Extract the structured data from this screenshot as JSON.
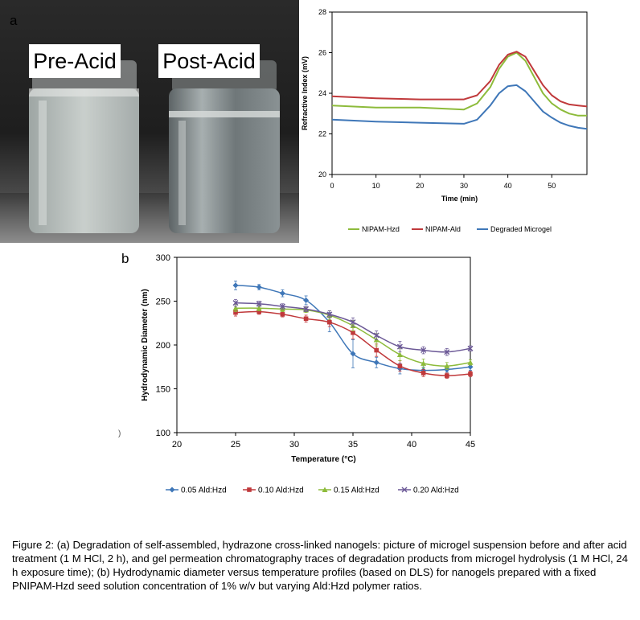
{
  "panel_a": {
    "letter": "a",
    "photo": {
      "label_left": "Pre-Acid",
      "label_right": "Post-Acid"
    }
  },
  "panel_b": {
    "letter": "b",
    "stray_mark": ")"
  },
  "caption": "Figure 2: (a) Degradation of self-assembled, hydrazone cross-linked nanogels: picture of microgel suspension before and after acid treatment (1 M HCl, 2 h), and gel permeation chromatography traces of degradation products from microgel hydrolysis (1 M HCl, 24 h exposure time); (b) Hydrodynamic diameter versus temperature profiles (based on DLS) for nanogels prepared with a fixed PNIPAM-Hzd seed solution concentration of 1% w/v but varying Ald:Hzd polymer ratios.",
  "chart_data": [
    {
      "type": "line",
      "xlabel": "Time (min)",
      "ylabel": "Refractive Index (mV)",
      "xlim": [
        0,
        58
      ],
      "ylim": [
        20,
        28
      ],
      "xticks": [
        0,
        10,
        20,
        30,
        40,
        50
      ],
      "yticks": [
        20,
        22,
        24,
        26,
        28
      ],
      "grid": false,
      "legend_position": "bottom",
      "series": [
        {
          "name": "NIPAM-Hzd",
          "color": "#8dbb3b",
          "x": [
            0,
            10,
            20,
            30,
            33,
            36,
            38,
            40,
            42,
            44,
            46,
            48,
            50,
            52,
            54,
            56,
            58
          ],
          "y": [
            23.4,
            23.3,
            23.3,
            23.2,
            23.5,
            24.3,
            25.2,
            25.8,
            26.0,
            25.6,
            24.8,
            24.0,
            23.5,
            23.2,
            23.0,
            22.9,
            22.9
          ]
        },
        {
          "name": "NIPAM-Ald",
          "color": "#c0393b",
          "x": [
            0,
            10,
            20,
            30,
            33,
            36,
            38,
            40,
            42,
            44,
            46,
            48,
            50,
            52,
            54,
            56,
            58
          ],
          "y": [
            23.85,
            23.75,
            23.7,
            23.7,
            23.9,
            24.6,
            25.4,
            25.9,
            26.05,
            25.8,
            25.1,
            24.4,
            23.9,
            23.6,
            23.45,
            23.4,
            23.35
          ]
        },
        {
          "name": "Degraded Microgel",
          "color": "#3f77b8",
          "x": [
            0,
            10,
            20,
            30,
            33,
            36,
            38,
            40,
            42,
            44,
            46,
            48,
            50,
            52,
            54,
            56,
            58
          ],
          "y": [
            22.7,
            22.6,
            22.55,
            22.5,
            22.7,
            23.4,
            24.0,
            24.35,
            24.4,
            24.1,
            23.6,
            23.1,
            22.8,
            22.55,
            22.4,
            22.3,
            22.25
          ]
        }
      ]
    },
    {
      "type": "line",
      "xlabel": "Temperature (°C)",
      "ylabel": "Hydrodynamic Diameter (nm)",
      "xlim": [
        20,
        45
      ],
      "ylim": [
        100,
        300
      ],
      "xticks": [
        20,
        25,
        30,
        35,
        40,
        45
      ],
      "yticks": [
        100,
        150,
        200,
        250,
        300
      ],
      "grid": false,
      "legend_position": "bottom",
      "x": [
        25,
        27,
        29,
        31,
        33,
        35,
        37,
        39,
        41,
        43,
        45
      ],
      "series": [
        {
          "name": "0.05 Ald:Hzd",
          "color": "#3f77b8",
          "marker": "diamond",
          "values": [
            268,
            266,
            259,
            251,
            226,
            190,
            180,
            173,
            171,
            172,
            175
          ],
          "errors": [
            5,
            3,
            4,
            5,
            11,
            16,
            6,
            6,
            4,
            3,
            4
          ]
        },
        {
          "name": "0.10 Ald:Hzd",
          "color": "#c0393b",
          "marker": "square",
          "values": [
            237,
            238,
            235,
            230,
            226,
            214,
            194,
            176,
            168,
            165,
            167
          ],
          "errors": [
            4,
            3,
            3,
            4,
            5,
            7,
            7,
            6,
            4,
            3,
            3
          ]
        },
        {
          "name": "0.15 Ald:Hzd",
          "color": "#8dbb3b",
          "marker": "triangle",
          "values": [
            242,
            242,
            241,
            240,
            234,
            222,
            206,
            189,
            179,
            176,
            180
          ],
          "errors": [
            4,
            3,
            3,
            3,
            5,
            6,
            7,
            7,
            5,
            4,
            3
          ]
        },
        {
          "name": "0.20 Ald:Hzd",
          "color": "#6b5896",
          "marker": "x",
          "values": [
            248,
            247,
            244,
            241,
            235,
            226,
            211,
            198,
            194,
            192,
            196
          ],
          "errors": [
            4,
            3,
            3,
            3,
            4,
            5,
            5,
            6,
            4,
            4,
            3
          ]
        }
      ]
    }
  ]
}
